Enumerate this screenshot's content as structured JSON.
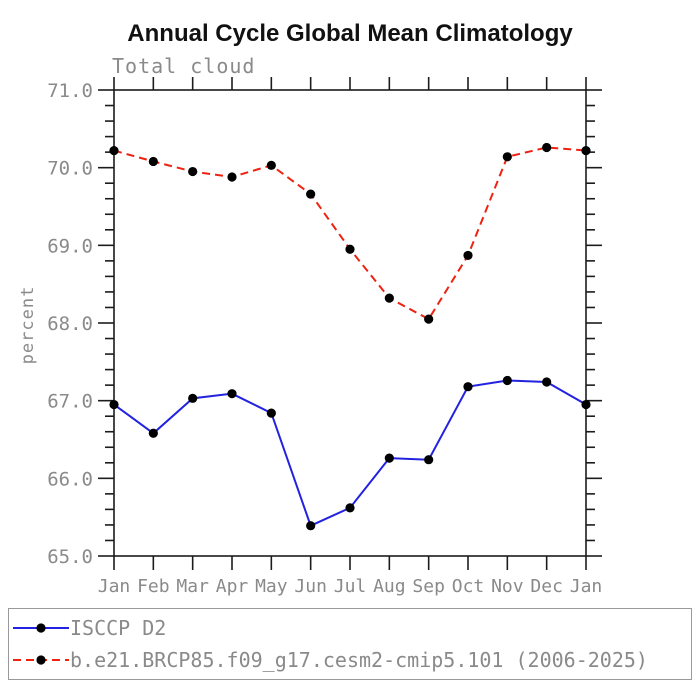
{
  "page": {
    "background": "#ffffff",
    "axis_color": "#1c1c1c",
    "label_color": "#8a8a8a",
    "legend_border_color": "#9a9a9a"
  },
  "chart_data": {
    "type": "line",
    "title": "Annual Cycle Global Mean Climatology",
    "subtitle": "Total cloud",
    "ylabel": "percent",
    "xlabel": "",
    "categories": [
      "Jan",
      "Feb",
      "Mar",
      "Apr",
      "May",
      "Jun",
      "Jul",
      "Aug",
      "Sep",
      "Oct",
      "Nov",
      "Dec",
      "Jan"
    ],
    "ylim": [
      65.0,
      71.0
    ],
    "y_major_step": 1.0,
    "y_minor_step": 0.2,
    "grid": false,
    "legend_position": "bottom",
    "marker": "filled-circle",
    "marker_color": "#000000",
    "series": [
      {
        "name": "ISCCP D2",
        "color": "#2222e0",
        "line_style": "solid",
        "values": [
          66.95,
          66.58,
          67.03,
          67.09,
          66.84,
          65.39,
          65.62,
          66.26,
          66.24,
          67.18,
          67.26,
          67.24,
          66.95
        ]
      },
      {
        "name": "b.e21.BRCP85.f09_g17.cesm2-cmip5.101 (2006-2025)",
        "color": "#ee2211",
        "line_style": "dashed",
        "values": [
          70.22,
          70.08,
          69.95,
          69.88,
          70.03,
          69.66,
          68.95,
          68.32,
          68.05,
          68.87,
          70.14,
          70.26,
          70.22
        ]
      }
    ]
  }
}
